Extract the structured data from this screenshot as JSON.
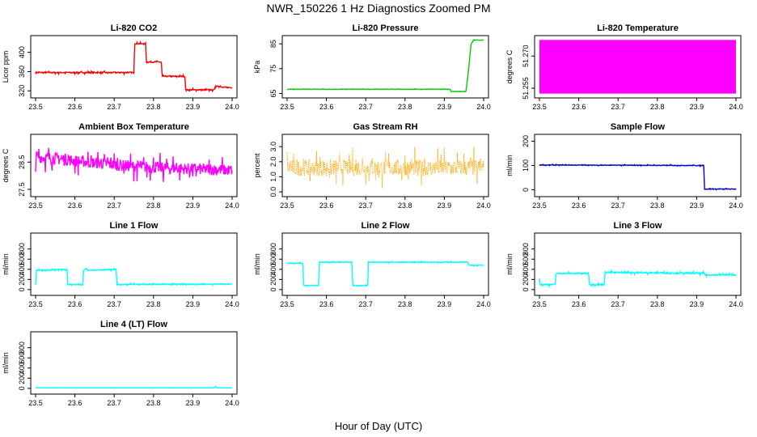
{
  "figure": {
    "title": "NWR_150226  1 Hz Diagnostics Zoomed PM",
    "xlabel": "Hour of Day (UTC)"
  },
  "chart_data": [
    {
      "type": "line",
      "title": "Li-820 CO2",
      "ylabel": "Licor ppm",
      "color": "#ff0000",
      "xlim": [
        23.5,
        24.0
      ],
      "ylim": [
        312,
        428
      ],
      "x_ticks": [
        "23.5",
        "23.6",
        "23.7",
        "23.8",
        "23.9",
        "24.0"
      ],
      "y_ticks": [
        320,
        360,
        400
      ],
      "grid": false,
      "series": [
        {
          "x": [
            23.5,
            23.75,
            23.752,
            23.78,
            23.782,
            23.82,
            23.822,
            23.88,
            23.882,
            23.955,
            23.957,
            23.97,
            23.972,
            24.0
          ],
          "y": [
            358,
            358,
            418,
            418,
            380,
            380,
            350,
            350,
            322,
            322,
            330,
            330,
            327,
            327
          ],
          "noise": 2
        }
      ]
    },
    {
      "type": "line",
      "title": "Li-820 Pressure",
      "ylabel": "kPa",
      "color": "#00cc00",
      "xlim": [
        23.5,
        24.0
      ],
      "ylim": [
        64.5,
        87
      ],
      "x_ticks": [
        "23.5",
        "23.6",
        "23.7",
        "23.8",
        "23.9",
        "24.0"
      ],
      "y_ticks": [
        65,
        75,
        85
      ],
      "grid": false,
      "series": [
        {
          "x": [
            23.5,
            23.915,
            23.917,
            23.955,
            23.96,
            23.965,
            23.968,
            23.975,
            24.0
          ],
          "y": [
            66.7,
            66.7,
            65.8,
            65.8,
            72,
            80,
            85,
            86.5,
            86.5
          ],
          "noise": 0.1
        }
      ]
    },
    {
      "type": "line",
      "title": "Li-820 Temperature",
      "ylabel": "degrees C",
      "color": "#ff00ff",
      "xlim": [
        23.5,
        24.0
      ],
      "ylim": [
        51.252,
        51.278
      ],
      "x_ticks": [
        "23.5",
        "23.6",
        "23.7",
        "23.8",
        "23.9",
        "24.0"
      ],
      "y_ticks": [
        "51.255",
        "51.270"
      ],
      "grid": false,
      "series": [
        {
          "x": [
            23.5,
            24.0
          ],
          "ymin": 51.2525,
          "ymax": 51.2775,
          "fill": "band"
        }
      ]
    },
    {
      "type": "line",
      "title": "Ambient Box Temperature",
      "ylabel": "degrees C",
      "color": "#ff00ff",
      "xlim": [
        23.5,
        24.0
      ],
      "ylim": [
        27.35,
        29.4
      ],
      "x_ticks": [
        "23.5",
        "23.6",
        "23.7",
        "23.8",
        "23.9",
        "24.0"
      ],
      "y_ticks": [
        "27.5",
        "28.5"
      ],
      "grid": false,
      "series": [
        {
          "x": [
            23.5,
            23.6,
            23.7,
            23.8,
            23.9,
            24.0
          ],
          "y": [
            28.7,
            28.55,
            28.4,
            28.3,
            28.25,
            28.2
          ],
          "noise": 0.35
        }
      ]
    },
    {
      "type": "line",
      "title": "Gas Stream RH",
      "ylabel": "percent",
      "color": "#ffa500",
      "xlim": [
        23.5,
        24.0
      ],
      "ylim": [
        -0.1,
        3.6
      ],
      "x_ticks": [
        "23.5",
        "23.6",
        "23.7",
        "23.8",
        "23.9",
        "24.0"
      ],
      "y_ticks": [
        "0.0",
        "1.0",
        "2.0",
        "3.0"
      ],
      "grid": false,
      "series": [
        {
          "x": [
            23.5,
            24.0
          ],
          "y": [
            1.6,
            1.6
          ],
          "noise": 0.9,
          "dots": true
        }
      ]
    },
    {
      "type": "line",
      "title": "Sample Flow",
      "ylabel": "ml/min",
      "color": "#0000cc",
      "xlim": [
        23.5,
        24.0
      ],
      "ylim": [
        -15,
        215
      ],
      "x_ticks": [
        "23.5",
        "23.6",
        "23.7",
        "23.8",
        "23.9",
        "24.0"
      ],
      "y_ticks": [
        0,
        100,
        200
      ],
      "grid": false,
      "series": [
        {
          "x": [
            23.5,
            23.915,
            23.918,
            23.92,
            24.0
          ],
          "y": [
            102,
            100,
            100,
            3,
            3
          ],
          "noise": 2
        }
      ]
    },
    {
      "type": "line",
      "title": "Line 1 Flow",
      "ylabel": "ml/min",
      "color": "#00ffff",
      "xlim": [
        23.5,
        24.0
      ],
      "ylim": [
        -50,
        1050
      ],
      "x_ticks": [
        "23.5",
        "23.6",
        "23.7",
        "23.8",
        "23.9",
        "24.0"
      ],
      "y_ticks": [
        0,
        200,
        400,
        600,
        800
      ],
      "grid": false,
      "series": [
        {
          "x": [
            23.5,
            23.502,
            23.503,
            23.58,
            23.582,
            23.62,
            23.622,
            23.63,
            23.632,
            23.705,
            23.707,
            24.0
          ],
          "y": [
            100,
            400,
            380,
            400,
            100,
            100,
            380,
            420,
            380,
            400,
            100,
            110
          ],
          "noise": 15
        }
      ]
    },
    {
      "type": "line",
      "title": "Line 2 Flow",
      "ylabel": "ml/min",
      "color": "#00ffff",
      "xlim": [
        23.5,
        24.0
      ],
      "ylim": [
        -50,
        1050
      ],
      "x_ticks": [
        "23.5",
        "23.6",
        "23.7",
        "23.8",
        "23.9",
        "24.0"
      ],
      "y_ticks": [
        0,
        200,
        400,
        600,
        800
      ],
      "grid": false,
      "series": [
        {
          "x": [
            23.5,
            23.54,
            23.542,
            23.58,
            23.582,
            23.665,
            23.667,
            23.705,
            23.707,
            23.96,
            23.962,
            24.0
          ],
          "y": [
            520,
            520,
            80,
            80,
            540,
            540,
            80,
            80,
            540,
            540,
            480,
            480
          ],
          "noise": 10
        }
      ]
    },
    {
      "type": "line",
      "title": "Line 3 Flow",
      "ylabel": "ml/min",
      "color": "#00ffff",
      "xlim": [
        23.5,
        24.0
      ],
      "ylim": [
        -50,
        1050
      ],
      "x_ticks": [
        "23.5",
        "23.6",
        "23.7",
        "23.8",
        "23.9",
        "24.0"
      ],
      "y_ticks": [
        0,
        200,
        400,
        600,
        800
      ],
      "grid": false,
      "series": [
        {
          "x": [
            23.5,
            23.502,
            23.504,
            23.54,
            23.542,
            23.625,
            23.627,
            23.665,
            23.667,
            23.92,
            23.922,
            24.0
          ],
          "y": [
            250,
            100,
            100,
            100,
            320,
            320,
            100,
            100,
            340,
            320,
            290,
            290
          ],
          "noise": 20
        }
      ]
    },
    {
      "type": "line",
      "title": "Line 4 (LT) Flow",
      "ylabel": "ml/min",
      "color": "#00ffff",
      "xlim": [
        23.5,
        24.0
      ],
      "ylim": [
        -50,
        1050
      ],
      "x_ticks": [
        "23.5",
        "23.6",
        "23.7",
        "23.8",
        "23.9",
        "24.0"
      ],
      "y_ticks": [
        0,
        200,
        400,
        600,
        800
      ],
      "grid": false,
      "series": [
        {
          "x": [
            23.5,
            23.955,
            23.958,
            23.96,
            24.0
          ],
          "y": [
            10,
            10,
            40,
            10,
            10
          ],
          "noise": 3
        }
      ]
    }
  ]
}
